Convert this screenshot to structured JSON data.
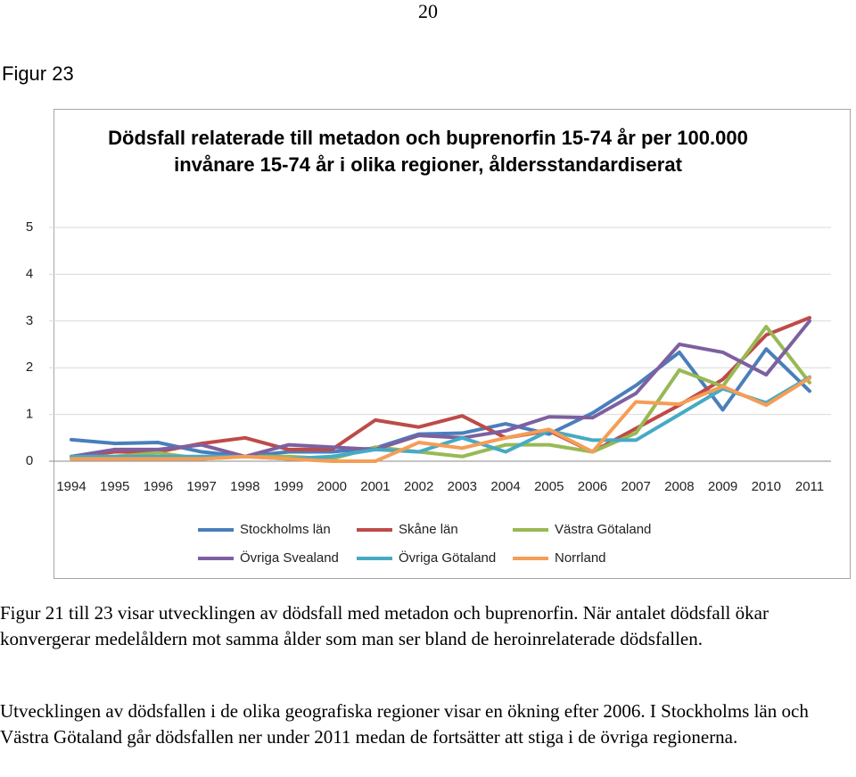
{
  "page_number": "20",
  "figure_label": "Figur 23",
  "chart_data": {
    "type": "line",
    "title": "Dödsfall relaterade till metadon och buprenorfin 15-74 år per 100.000 invånare 15-74 år  i olika regioner, åldersstandardiserat",
    "categories": [
      "1994",
      "1995",
      "1996",
      "1997",
      "1998",
      "1999",
      "2000",
      "2001",
      "2002",
      "2003",
      "2004",
      "2005",
      "2006",
      "2007",
      "2008",
      "2009",
      "2010",
      "2011"
    ],
    "ylim": [
      0,
      5
    ],
    "yticks": [
      0,
      1,
      2,
      3,
      4,
      5
    ],
    "grid": true,
    "legend": "bottom",
    "series": [
      {
        "name": "Stockholms län",
        "color": "#4a7ebb",
        "values": [
          0.46,
          0.38,
          0.4,
          0.2,
          0.1,
          0.2,
          0.2,
          0.28,
          0.58,
          0.6,
          0.8,
          0.58,
          1.03,
          1.62,
          2.33,
          1.1,
          2.4,
          1.5
        ]
      },
      {
        "name": "Skåne län",
        "color": "#be4b48",
        "values": [
          0.1,
          0.2,
          0.2,
          0.38,
          0.5,
          0.25,
          0.25,
          0.88,
          0.73,
          0.97,
          0.5,
          0.65,
          0.2,
          0.7,
          1.2,
          1.75,
          2.7,
          3.07
        ]
      },
      {
        "name": "Västra Götaland",
        "color": "#98b954",
        "values": [
          0.1,
          0.1,
          0.18,
          0.05,
          0.1,
          0.1,
          0.05,
          0.3,
          0.2,
          0.1,
          0.35,
          0.35,
          0.2,
          0.6,
          1.95,
          1.6,
          2.88,
          1.68
        ]
      },
      {
        "name": "Övriga Svealand",
        "color": "#7d60a0",
        "values": [
          0.1,
          0.25,
          0.25,
          0.35,
          0.1,
          0.35,
          0.3,
          0.25,
          0.55,
          0.5,
          0.65,
          0.95,
          0.93,
          1.45,
          2.5,
          2.33,
          1.85,
          3.0
        ]
      },
      {
        "name": "Övriga Götaland",
        "color": "#46aac5",
        "values": [
          0.1,
          0.1,
          0.1,
          0.1,
          0.1,
          0.05,
          0.1,
          0.25,
          0.2,
          0.5,
          0.2,
          0.65,
          0.45,
          0.45,
          1.0,
          1.55,
          1.25,
          1.8
        ]
      },
      {
        "name": "Norrland",
        "color": "#f59d56",
        "values": [
          0.05,
          0.05,
          0.05,
          0.05,
          0.1,
          0.05,
          0.0,
          0.0,
          0.4,
          0.28,
          0.5,
          0.68,
          0.2,
          1.27,
          1.22,
          1.6,
          1.2,
          1.78
        ]
      }
    ]
  },
  "paragraphs": [
    "Figur 21 till 23 visar utvecklingen av dödsfall med metadon och buprenorfin. När antalet dödsfall ökar konvergerar medelåldern mot samma ålder som man ser bland de heroinrelaterade dödsfallen.",
    "Utvecklingen av dödsfallen i de olika geografiska regioner visar en ökning efter 2006. I Stockholms län och Västra Götaland går dödsfallen ner under 2011 medan de fortsätter att stiga i de övriga regionerna."
  ]
}
